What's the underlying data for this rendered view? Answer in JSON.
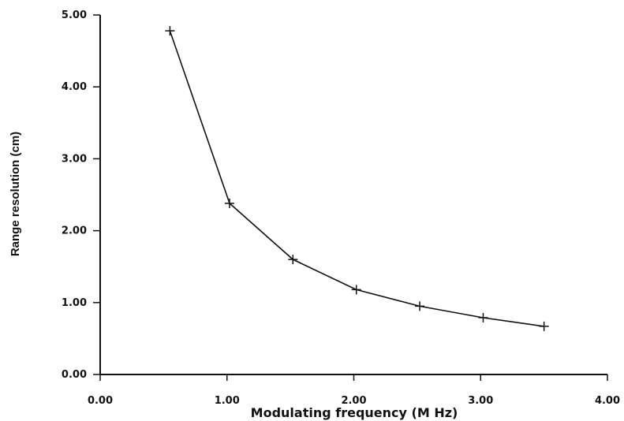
{
  "chart_data": {
    "type": "line",
    "title": "",
    "xlabel": "Modulating frequency (M Hz)",
    "ylabel": "Range resolution (cm)",
    "xlim": [
      0,
      4
    ],
    "ylim": [
      0,
      5
    ],
    "x_ticks": [
      "0.00",
      "1.00",
      "2.00",
      "3.00",
      "4.00"
    ],
    "y_ticks": [
      "0.00",
      "1.00",
      "2.00",
      "3.00",
      "4.00",
      "5.00"
    ],
    "grid": false,
    "marker": "plus",
    "line_color": "#111111",
    "series": [
      {
        "x": [
          0.55,
          1.02,
          1.52,
          2.02,
          2.52,
          3.02,
          3.5
        ],
        "y": [
          4.78,
          2.38,
          1.6,
          1.18,
          0.95,
          0.79,
          0.67
        ]
      }
    ]
  }
}
